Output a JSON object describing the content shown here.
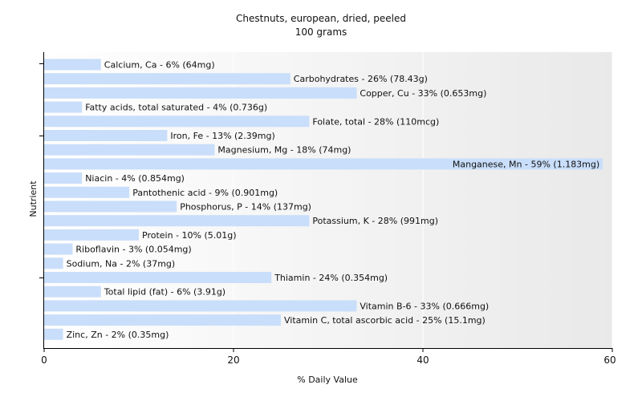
{
  "chart_data": {
    "type": "bar",
    "orientation": "horizontal",
    "title": "Chestnuts, european, dried, peeled",
    "subtitle": "100 grams",
    "xlabel": "% Daily Value",
    "ylabel": "Nutrient",
    "xlim": [
      0,
      60
    ],
    "xticks": [
      "0",
      "20",
      "40",
      "60"
    ],
    "bar_color": "#c9defa",
    "grid": false,
    "categories": [
      "Calcium, Ca",
      "Carbohydrates",
      "Copper, Cu",
      "Fatty acids, total saturated",
      "Folate, total",
      "Iron, Fe",
      "Magnesium, Mg",
      "Manganese, Mn",
      "Niacin",
      "Pantothenic acid",
      "Phosphorus, P",
      "Potassium, K",
      "Protein",
      "Riboflavin",
      "Sodium, Na",
      "Thiamin",
      "Total lipid (fat)",
      "Vitamin B-6",
      "Vitamin C, total ascorbic acid",
      "Zinc, Zn"
    ],
    "values": [
      6,
      26,
      33,
      4,
      28,
      13,
      18,
      59,
      4,
      9,
      14,
      28,
      10,
      3,
      2,
      24,
      6,
      33,
      25,
      2
    ],
    "labels": [
      "Calcium, Ca - 6% (64mg)",
      "Carbohydrates - 26% (78.43g)",
      "Copper, Cu - 33% (0.653mg)",
      "Fatty acids, total saturated - 4% (0.736g)",
      "Folate, total - 28% (110mcg)",
      "Iron, Fe - 13% (2.39mg)",
      "Magnesium, Mg - 18% (74mg)",
      "Manganese, Mn - 59% (1.183mg)",
      "Niacin - 4% (0.854mg)",
      "Pantothenic acid - 9% (0.901mg)",
      "Phosphorus, P - 14% (137mg)",
      "Potassium, K - 28% (991mg)",
      "Protein - 10% (5.01g)",
      "Riboflavin - 3% (0.054mg)",
      "Sodium, Na - 2% (37mg)",
      "Thiamin - 24% (0.354mg)",
      "Total lipid (fat) - 6% (3.91g)",
      "Vitamin B-6 - 33% (0.666mg)",
      "Vitamin C, total ascorbic acid - 25% (15.1mg)",
      "Zinc, Zn - 2% (0.35mg)"
    ]
  }
}
